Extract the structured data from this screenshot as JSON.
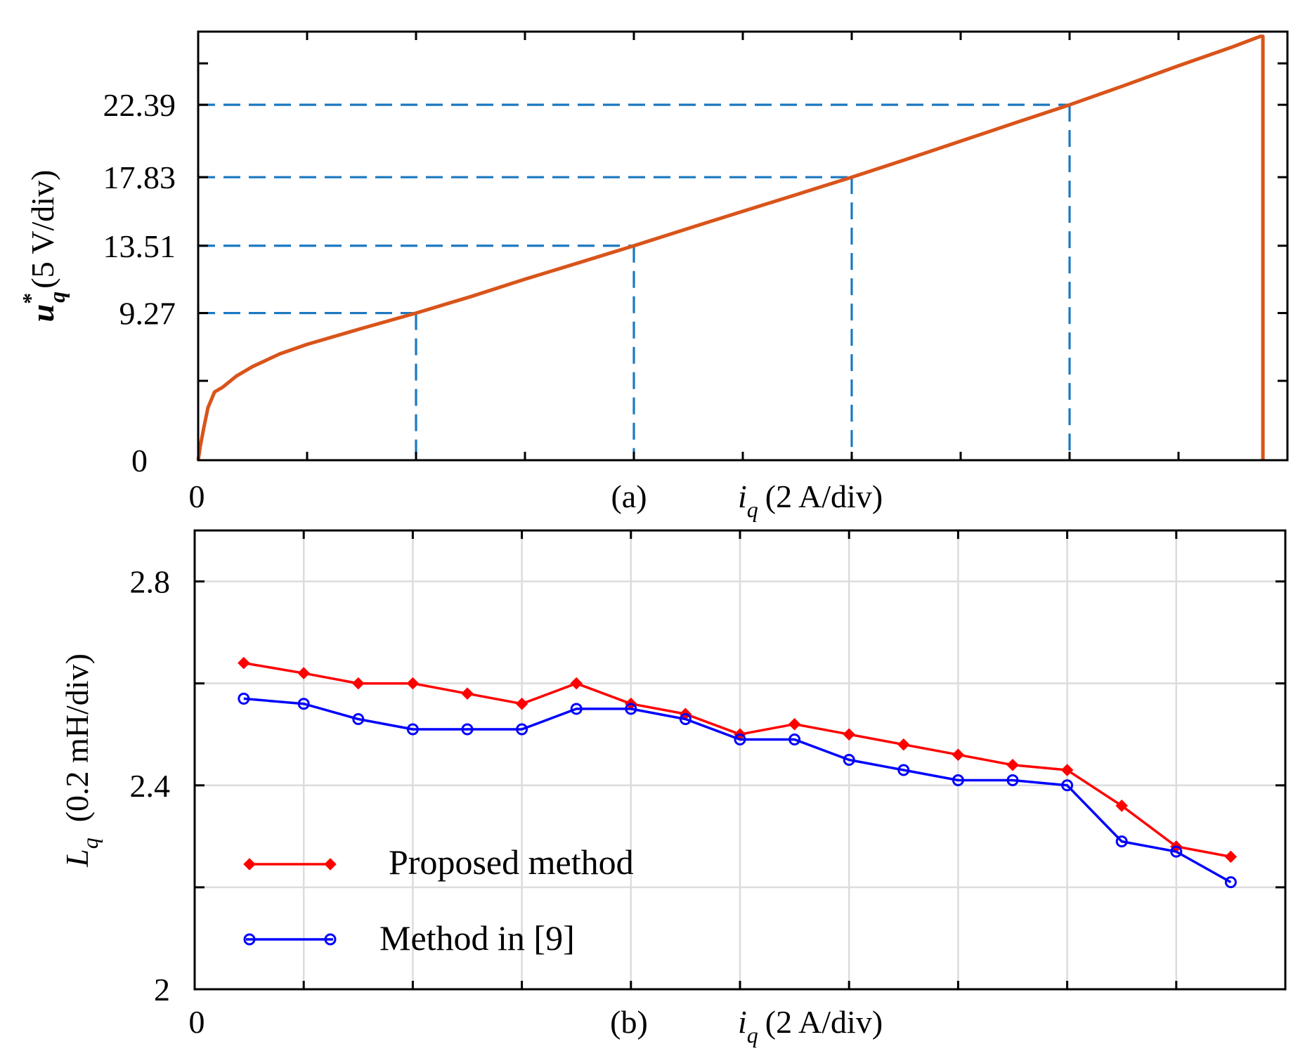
{
  "colors": {
    "curve_a": "#d9541a",
    "guides_a": "#1b78c0",
    "proposed": "#ff0000",
    "method9": "#0000ff",
    "grid": "#dcdcdc"
  },
  "panel_a": {
    "caption": "(a)",
    "xlabel_symbol": "i",
    "xlabel_sub": "q",
    "xlabel_unit": "(2 A/div)",
    "ylabel_symbol": "u",
    "ylabel_sup": "*",
    "ylabel_sub": "q",
    "ylabel_unit": "(5 V/div)",
    "x_origin_label": "0",
    "y_origin_label": "0"
  },
  "panel_b": {
    "caption": "(b)",
    "xlabel_symbol": "i",
    "xlabel_sub": "q",
    "xlabel_unit": "(2 A/div)",
    "ylabel_symbol": "L",
    "ylabel_sub": "q",
    "ylabel_unit": "(0.2 mH/div)",
    "x_origin_label": "0"
  },
  "chart_data": [
    {
      "panel": "a",
      "type": "line",
      "title": "",
      "xlabel": "i_q (2 A/div)",
      "ylabel": "u_q* (5 V/div)",
      "xlim": [
        0,
        20
      ],
      "ylim": [
        0,
        27
      ],
      "x_divisions": 10,
      "y_tick_values": [
        0,
        5,
        9.27,
        13.51,
        17.83,
        22.39,
        25
      ],
      "y_tick_labels": [
        "0",
        "",
        "9.27",
        "13.51",
        "17.83",
        "22.39",
        ""
      ],
      "x_tick_labels": [
        "0"
      ],
      "grid": false,
      "series": [
        {
          "name": "u_q*",
          "x": [
            0,
            0.04,
            0.1,
            0.18,
            0.3,
            0.45,
            0.7,
            1.0,
            1.5,
            2.0,
            3.0,
            4.0,
            5.0,
            6.0,
            7.0,
            8.0,
            9.0,
            10.0,
            11.0,
            12.0,
            13.0,
            14.0,
            15.0,
            16.0,
            17.0,
            18.0,
            19.0,
            19.5,
            19.55
          ],
          "values": [
            0,
            0.9,
            2.0,
            3.3,
            4.3,
            4.6,
            5.3,
            5.9,
            6.7,
            7.3,
            8.3,
            9.27,
            10.3,
            11.4,
            12.45,
            13.51,
            14.6,
            15.68,
            16.75,
            17.83,
            18.95,
            20.1,
            21.25,
            22.39,
            23.6,
            24.85,
            26.05,
            26.7,
            26.7
          ]
        }
      ],
      "guides": [
        {
          "x": 4,
          "y": 9.27
        },
        {
          "x": 8,
          "y": 13.51
        },
        {
          "x": 12,
          "y": 17.83
        },
        {
          "x": 16,
          "y": 22.39
        }
      ]
    },
    {
      "panel": "b",
      "type": "line",
      "title": "",
      "xlabel": "i_q (2 A/div)",
      "ylabel": "L_q (0.2 mH/div)",
      "xlim": [
        0,
        20
      ],
      "ylim": [
        2.0,
        2.9
      ],
      "x_divisions": 10,
      "y_tick_values": [
        2.0,
        2.2,
        2.4,
        2.6,
        2.8
      ],
      "y_tick_labels": [
        "2",
        "",
        "2.4",
        "",
        "2.8"
      ],
      "x_tick_labels": [
        "0"
      ],
      "grid": true,
      "legend_position": "bottom-left",
      "categories": [
        0.9,
        2,
        3,
        4,
        5,
        6,
        7,
        8,
        9,
        10,
        11,
        12,
        13,
        14,
        15,
        16,
        17,
        18,
        19
      ],
      "series": [
        {
          "name": "Proposed method",
          "marker": "diamond",
          "values": [
            2.64,
            2.62,
            2.6,
            2.6,
            2.58,
            2.56,
            2.6,
            2.56,
            2.54,
            2.5,
            2.52,
            2.5,
            2.48,
            2.46,
            2.44,
            2.43,
            2.36,
            2.28,
            2.26
          ]
        },
        {
          "name": "Method in [9]",
          "marker": "circle",
          "values": [
            2.57,
            2.56,
            2.53,
            2.51,
            2.51,
            2.51,
            2.55,
            2.55,
            2.53,
            2.49,
            2.49,
            2.45,
            2.43,
            2.41,
            2.41,
            2.4,
            2.29,
            2.27,
            2.21
          ]
        }
      ]
    }
  ]
}
